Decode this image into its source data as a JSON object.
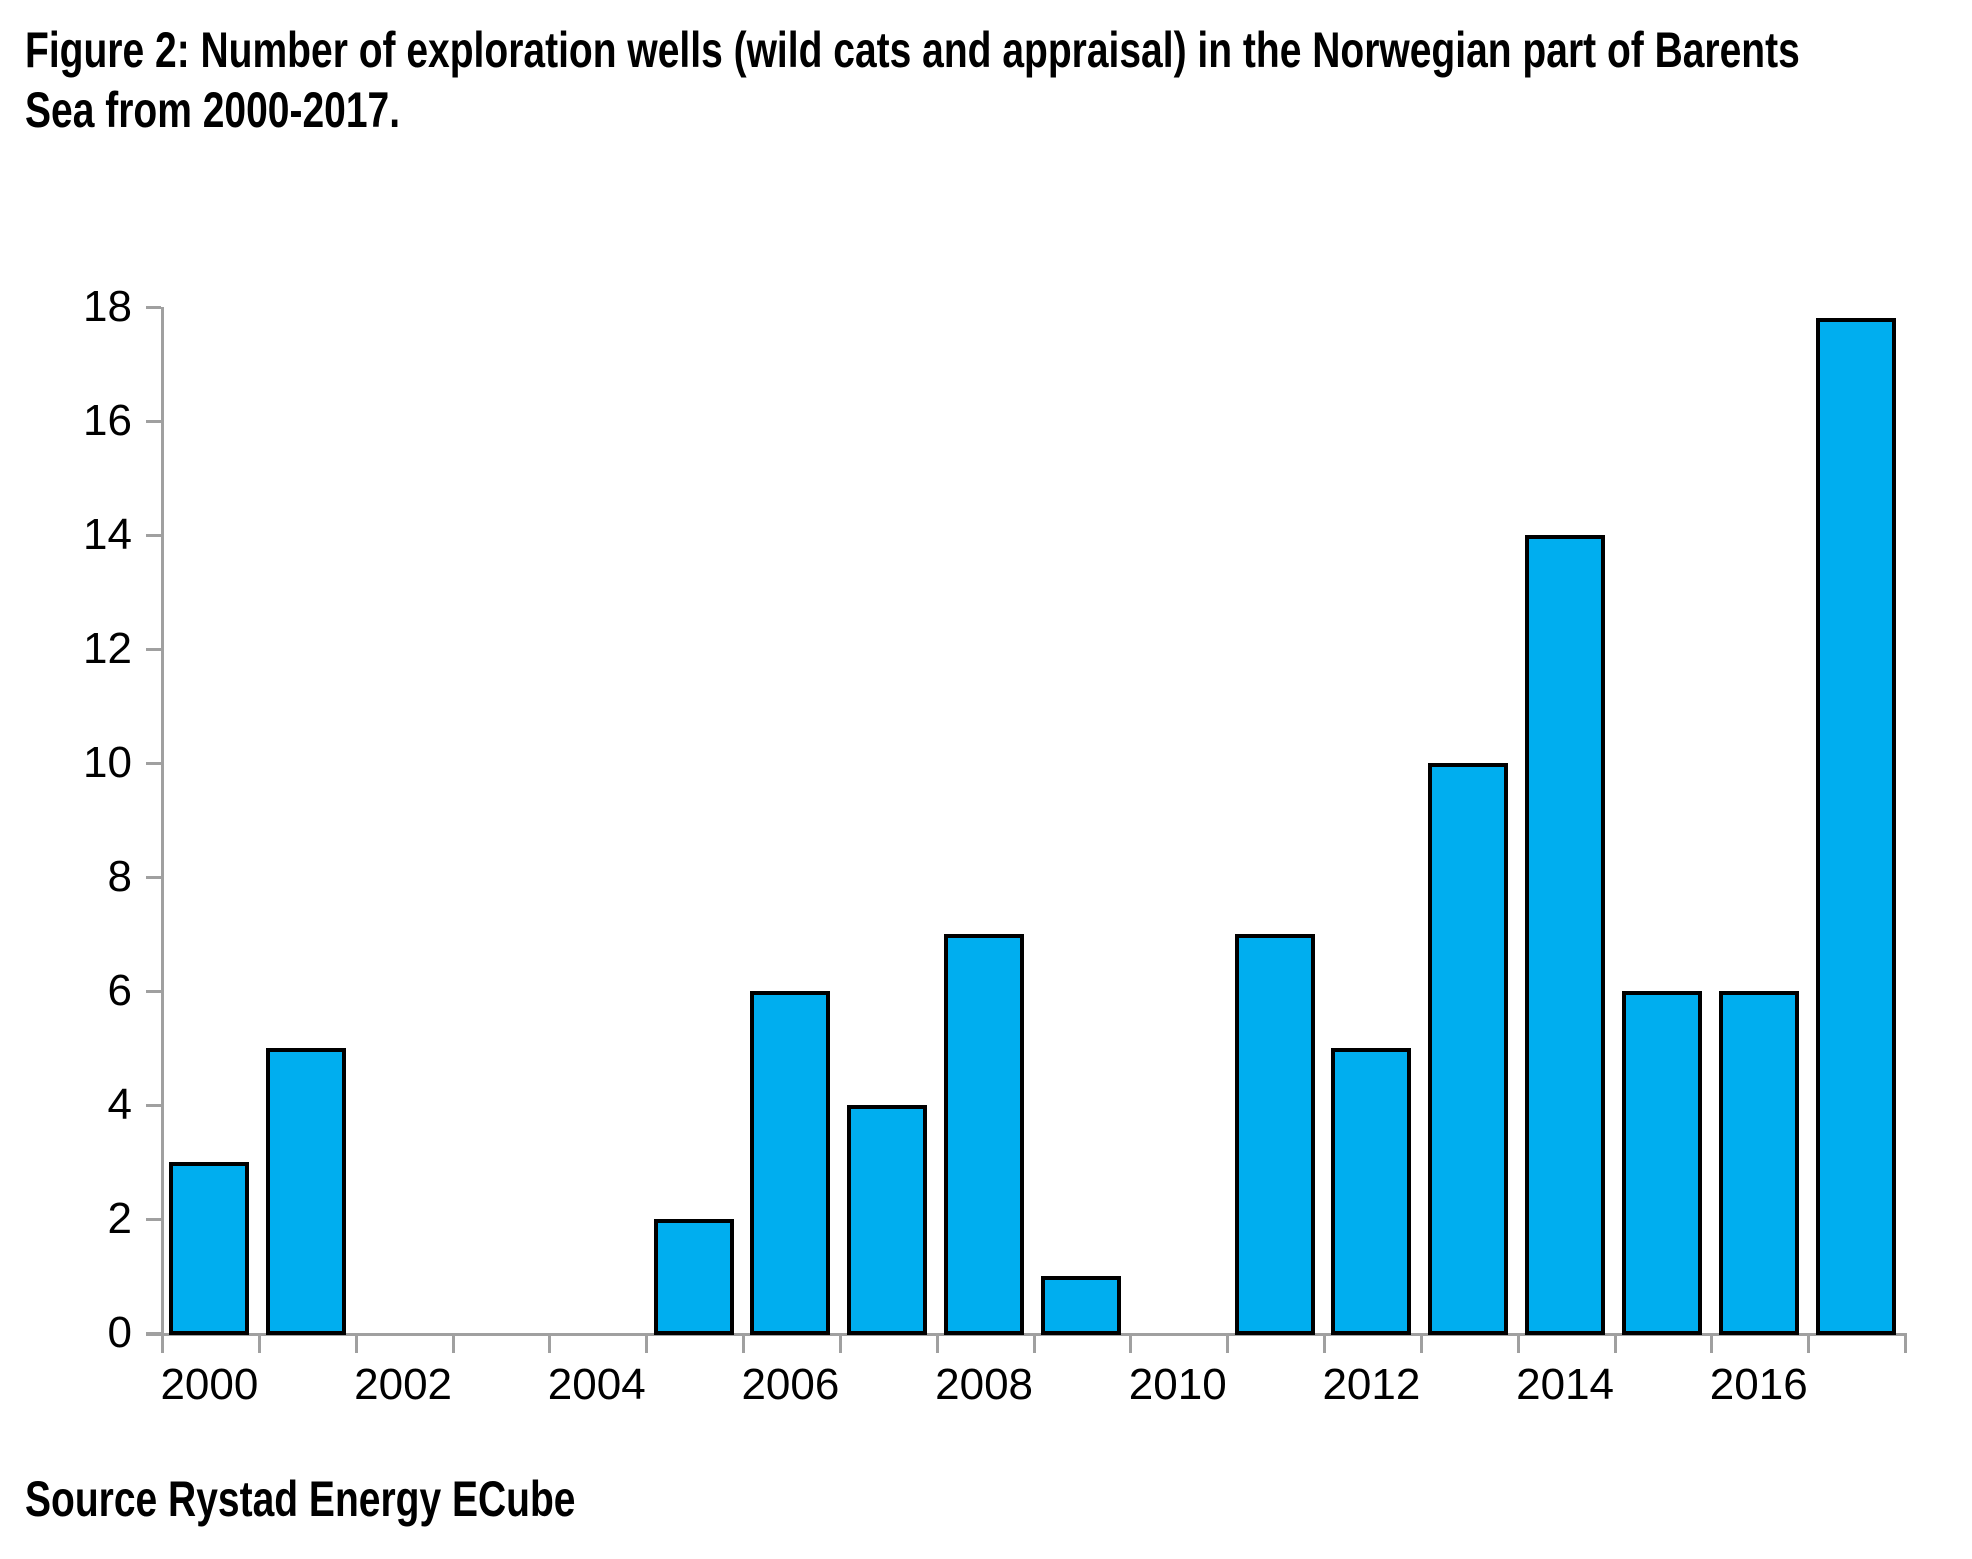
{
  "title": {
    "text": "Figure 2: Number of exploration wells (wild cats and appraisal) in the Norwegian part of Barents\nSea from 2000-2017."
  },
  "source": "Source Rystad Energy ECube",
  "colors": {
    "bar_fill": "#00AEEF",
    "bar_border": "#000000",
    "axis": "#A0A0A0",
    "text": "#000000"
  },
  "chart_data": {
    "type": "bar",
    "title": "Figure 2: Number of exploration wells (wild cats and appraisal) in the Norwegian part of Barents Sea from 2000-2017.",
    "categories": [
      "2000",
      "2001",
      "2002",
      "2003",
      "2004",
      "2005",
      "2006",
      "2007",
      "2008",
      "2009",
      "2010",
      "2011",
      "2012",
      "2013",
      "2014",
      "2015",
      "2016",
      "2017"
    ],
    "values": [
      3,
      5,
      0,
      0,
      0,
      2,
      6,
      4,
      7,
      1,
      0,
      7,
      5,
      10,
      14,
      6,
      6,
      17.8
    ],
    "xlabel": "",
    "ylabel": "",
    "ylim": [
      0,
      18
    ],
    "ytick_step": 2,
    "ytick_labels": [
      "0",
      "2",
      "4",
      "6",
      "8",
      "10",
      "12",
      "14",
      "16",
      "18"
    ],
    "xtick_labels": [
      "2000",
      "2002",
      "2004",
      "2006",
      "2008",
      "2010",
      "2012",
      "2014",
      "2016"
    ],
    "grid": false,
    "legend_position": "none"
  }
}
